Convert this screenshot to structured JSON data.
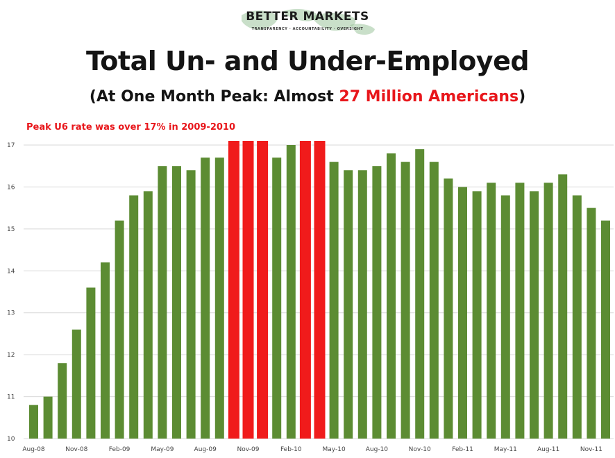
{
  "logo": {
    "name": "BETTER MARKETS",
    "tagline": "TRANSPARENCY · ACCOUNTABILITY · OVERSIGHT"
  },
  "header": {
    "title": "Total Un- and Under-Employed",
    "subtitle_pre": "(At One Month Peak: Almost ",
    "subtitle_highlight": "27 Million Americans",
    "subtitle_post": ")"
  },
  "annotation": "Peak U6 rate was over 17% in 2009-2010",
  "colors": {
    "normal_bar": "#5c8c33",
    "peak_bar": "#f01b1b",
    "highlight_text": "#e8161b",
    "grid": "#d9d9d9"
  },
  "chart_data": {
    "type": "bar",
    "title": "Total Un- and Under-Employed",
    "xlabel": "",
    "ylabel": "",
    "ylim": [
      10,
      17
    ],
    "yticks": [
      10,
      11,
      12,
      13,
      14,
      15,
      16,
      17
    ],
    "grid": true,
    "legend": "none",
    "categories": [
      "Aug-08",
      "Sep-08",
      "Oct-08",
      "Nov-08",
      "Dec-08",
      "Jan-09",
      "Feb-09",
      "Mar-09",
      "Apr-09",
      "May-09",
      "Jun-09",
      "Jul-09",
      "Aug-09",
      "Sep-09",
      "Oct-09",
      "Nov-09",
      "Dec-09",
      "Jan-10",
      "Feb-10",
      "Mar-10",
      "Apr-10",
      "May-10",
      "Jun-10",
      "Jul-10",
      "Aug-10",
      "Sep-10",
      "Oct-10",
      "Nov-10",
      "Dec-10",
      "Jan-11",
      "Feb-11",
      "Mar-11",
      "Apr-11",
      "May-11",
      "Jun-11",
      "Jul-11",
      "Aug-11",
      "Sep-11",
      "Oct-11",
      "Nov-11",
      "Dec-11"
    ],
    "tick_labels": [
      "Aug-08",
      "Nov-08",
      "Feb-09",
      "May-09",
      "Aug-09",
      "Nov-09",
      "Feb-10",
      "May-10",
      "Aug-10",
      "Nov-10",
      "Feb-11",
      "May-11",
      "Aug-11",
      "Nov-11"
    ],
    "values": [
      10.8,
      11.0,
      11.8,
      12.6,
      13.6,
      14.2,
      15.2,
      15.8,
      15.9,
      16.5,
      16.5,
      16.4,
      16.7,
      16.7,
      17.1,
      17.1,
      17.1,
      16.7,
      17.0,
      17.1,
      17.1,
      16.6,
      16.4,
      16.4,
      16.5,
      16.8,
      16.6,
      16.9,
      16.6,
      16.2,
      16.0,
      15.9,
      16.1,
      15.8,
      16.1,
      15.9,
      16.1,
      16.3,
      15.8,
      15.5,
      15.2
    ],
    "highlighted": [
      false,
      false,
      false,
      false,
      false,
      false,
      false,
      false,
      false,
      false,
      false,
      false,
      false,
      false,
      true,
      true,
      true,
      false,
      false,
      true,
      true,
      false,
      false,
      false,
      false,
      false,
      false,
      false,
      false,
      false,
      false,
      false,
      false,
      false,
      false,
      false,
      false,
      false,
      false,
      false,
      false
    ]
  }
}
